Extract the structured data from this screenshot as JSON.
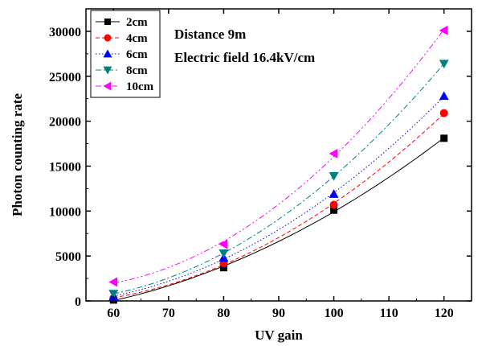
{
  "chart_data": {
    "type": "scatter",
    "xlabel": "UV gain",
    "ylabel": "Photon counting rate",
    "xlim": [
      55,
      125
    ],
    "ylim": [
      0,
      32500
    ],
    "xticks": [
      60,
      70,
      80,
      90,
      100,
      110,
      120
    ],
    "yticks": [
      0,
      5000,
      10000,
      15000,
      20000,
      25000,
      30000
    ],
    "annotations": [
      "Distance 9m",
      "Electric field 16.4kV/cm"
    ],
    "legend_position": "top-left",
    "grid": false,
    "x": [
      60,
      80,
      100,
      120
    ],
    "series": [
      {
        "name": "2cm",
        "values": [
          100,
          3700,
          10100,
          18100
        ],
        "color": "#000000",
        "marker": "square",
        "line": "solid"
      },
      {
        "name": "4cm",
        "values": [
          300,
          4200,
          10700,
          20900
        ],
        "color": "#ff0000",
        "marker": "circle",
        "line": "dashed"
      },
      {
        "name": "6cm",
        "values": [
          500,
          4800,
          11900,
          22800
        ],
        "color": "#0000ff",
        "marker": "triangle-up",
        "line": "dotted"
      },
      {
        "name": "8cm",
        "values": [
          800,
          5300,
          13900,
          26400
        ],
        "color": "#008080",
        "marker": "triangle-down",
        "line": "dashdot"
      },
      {
        "name": "10cm",
        "values": [
          2100,
          6300,
          16400,
          30100
        ],
        "color": "#ff00ff",
        "marker": "triangle-left",
        "line": "dashdotdot"
      }
    ]
  }
}
